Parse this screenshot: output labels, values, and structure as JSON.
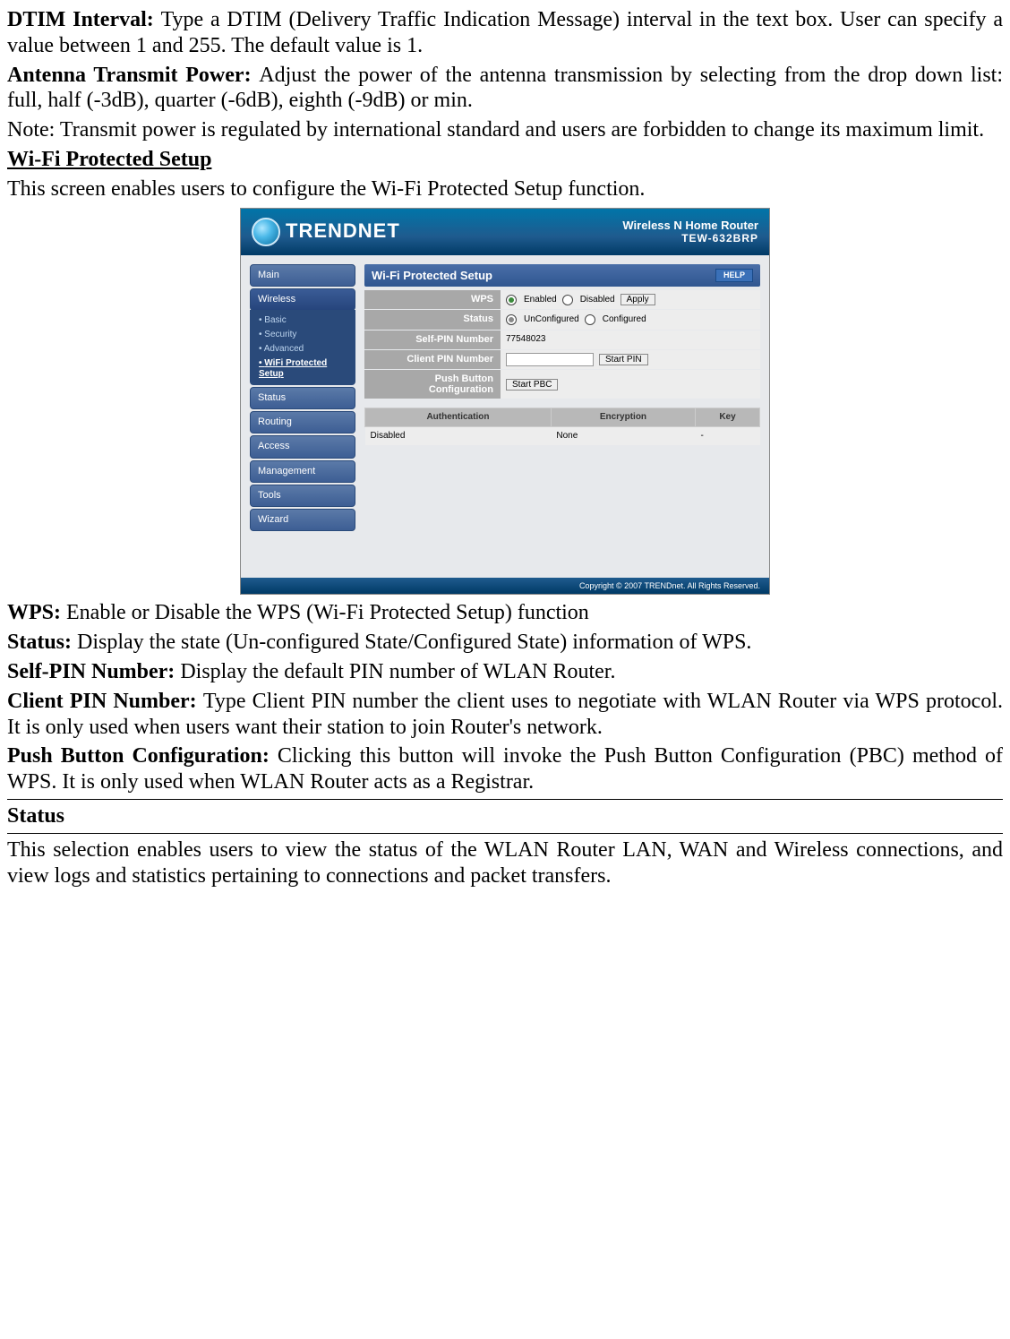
{
  "doc": {
    "p1": {
      "label": "DTIM Interval: ",
      "text": "Type a DTIM (Delivery Traffic Indication Message) interval in the text box. User can specify a value between 1 and 255. The default value is 1."
    },
    "p2": {
      "label": "Antenna Transmit Power: ",
      "text": "Adjust the power of the antenna transmission by selecting from the drop down list: full, half (-3dB), quarter (-6dB), eighth (-9dB) or min."
    },
    "p3": "Note: Transmit power is regulated by international standard and users are forbidden to change its maximum limit.",
    "h1": "Wi-Fi Protected Setup",
    "p4": "This screen enables users to configure the Wi-Fi Protected Setup function.",
    "p5": {
      "label": "WPS: ",
      "text": "Enable or Disable the WPS (Wi-Fi Protected Setup) function"
    },
    "p6": {
      "label": "Status: ",
      "text": "Display the state (Un-configured State/Configured State) information of WPS."
    },
    "p7": {
      "label": "Self-PIN Number: ",
      "text": "Display the default PIN number of WLAN Router."
    },
    "p8": {
      "label": "Client PIN Number: ",
      "text": "Type Client PIN number the client uses to negotiate with WLAN Router via WPS protocol. It is only used when users want their station to join Router's network."
    },
    "p9": {
      "label": "Push Button Configuration: ",
      "text": "Clicking this button will invoke the Push Button Configuration (PBC) method of WPS. It is only used when WLAN Router acts as a Registrar."
    },
    "h2": "Status",
    "p10": "This selection enables users to view the status of the WLAN Router LAN, WAN and Wireless connections, and view logs and statistics pertaining to connections and packet transfers."
  },
  "ui": {
    "brand": "TRENDNET",
    "product1": "Wireless N Home Router",
    "product2": "TEW-632BRP",
    "nav": {
      "main": "Main",
      "wireless": "Wireless",
      "status": "Status",
      "routing": "Routing",
      "access": "Access",
      "management": "Management",
      "tools": "Tools",
      "wizard": "Wizard"
    },
    "subnav": {
      "basic": "Basic",
      "security": "Security",
      "advanced": "Advanced",
      "wps": "WiFi Protected Setup"
    },
    "panel": {
      "title": "Wi-Fi Protected Setup",
      "help": "HELP",
      "rows": {
        "wps": "WPS",
        "status": "Status",
        "selfpin": "Self-PIN Number",
        "clientpin": "Client PIN Number",
        "pbc": "Push Button Configuration"
      },
      "values": {
        "enabled": "Enabled",
        "disabled": "Disabled",
        "apply": "Apply",
        "unconfigured": "UnConfigured",
        "configured": "Configured",
        "selfpin_val": "77548023",
        "startpin": "Start PIN",
        "startpbc": "Start PBC"
      },
      "grid": {
        "h1": "Authentication",
        "h2": "Encryption",
        "h3": "Key",
        "r1c1": "Disabled",
        "r1c2": "None",
        "r1c3": "-"
      }
    },
    "footer": "Copyright © 2007 TRENDnet. All Rights Reserved."
  }
}
